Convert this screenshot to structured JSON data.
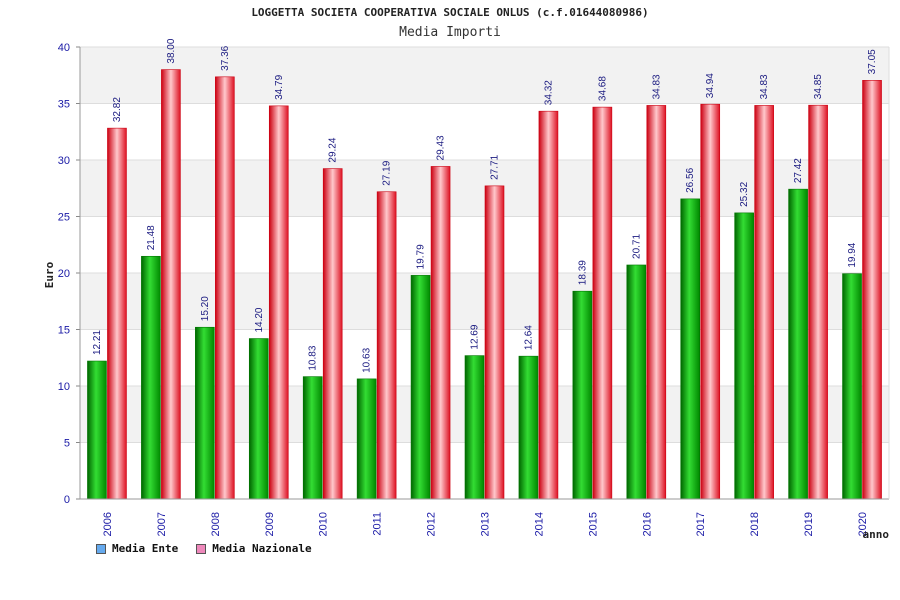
{
  "colors": {
    "series1_legend": "#66aaee",
    "series2_legend": "#ee88bb",
    "series1_bar": "#00aa00",
    "series2_bar": "#ee2233",
    "band": "#f2f2f2"
  },
  "chart_data": {
    "type": "bar",
    "title": "LOGGETTA SOCIETA COOPERATIVA SOCIALE ONLUS (c.f.01644080986)",
    "subtitle": "Media Importi",
    "xlabel": "anno",
    "ylabel": "Euro",
    "ylim": [
      0,
      40
    ],
    "yticks": [
      0,
      5,
      10,
      15,
      20,
      25,
      30,
      35,
      40
    ],
    "categories": [
      "2006",
      "2007",
      "2008",
      "2009",
      "2010",
      "2011",
      "2012",
      "2013",
      "2014",
      "2015",
      "2016",
      "2017",
      "2018",
      "2019",
      "2020"
    ],
    "series": [
      {
        "name": "Media Ente",
        "values": [
          12.21,
          21.48,
          15.2,
          14.2,
          10.83,
          10.63,
          19.79,
          12.69,
          12.64,
          18.39,
          20.71,
          26.56,
          25.32,
          27.42,
          19.94
        ]
      },
      {
        "name": "Media Nazionale",
        "values": [
          32.82,
          38.0,
          37.36,
          34.79,
          29.24,
          27.19,
          29.43,
          27.71,
          34.32,
          34.68,
          34.83,
          34.94,
          34.83,
          34.85,
          37.05
        ]
      }
    ]
  }
}
